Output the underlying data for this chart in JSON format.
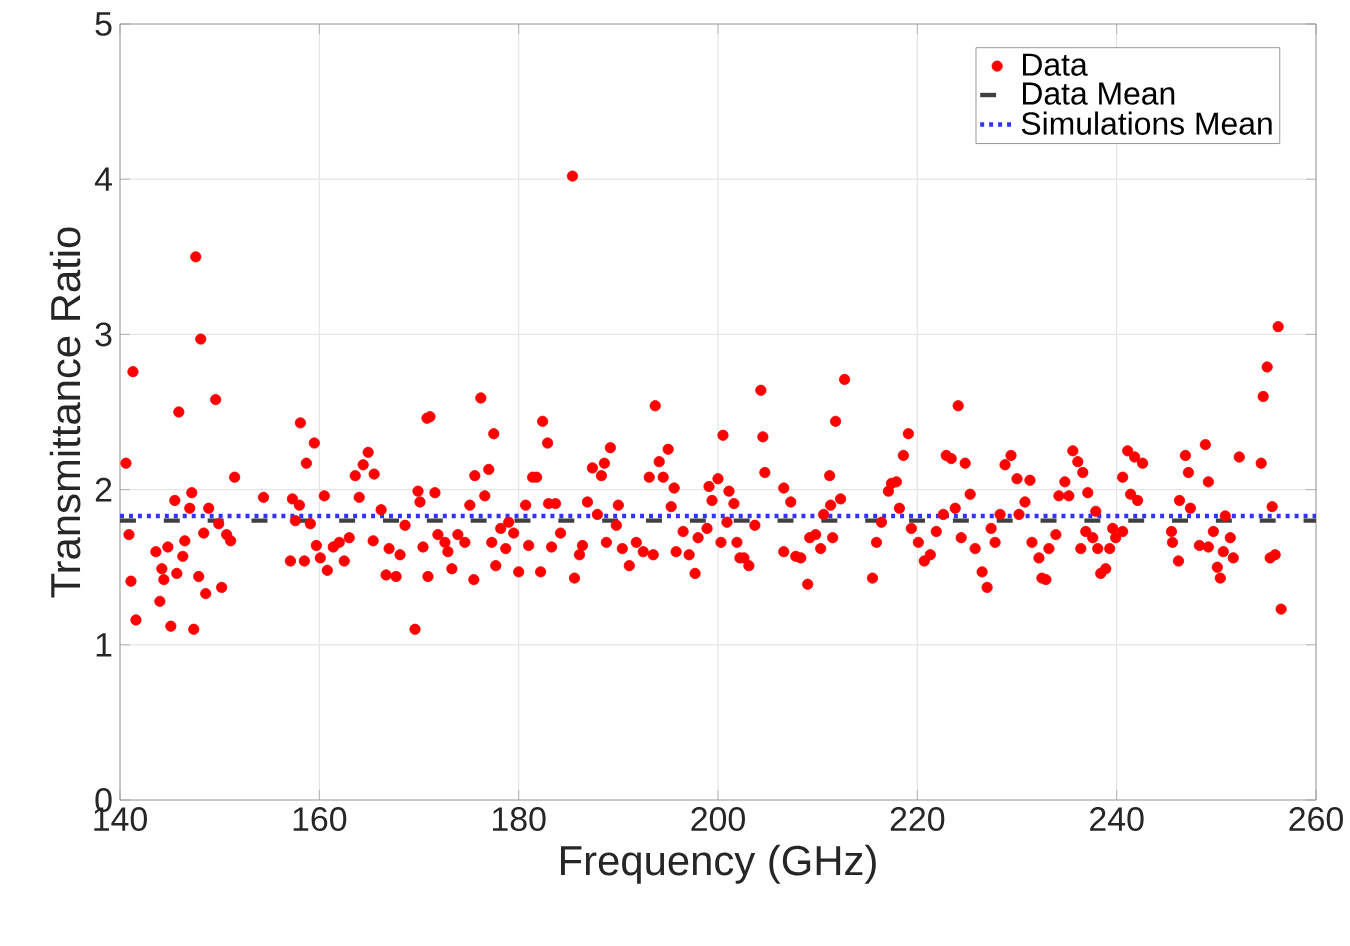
{
  "chart_data": {
    "type": "scatter",
    "xlabel": "Frequency (GHz)",
    "ylabel": "Transmittance Ratio",
    "xlim": [
      140,
      260
    ],
    "ylim": [
      0,
      5
    ],
    "xticks": [
      140,
      160,
      180,
      200,
      220,
      240,
      260
    ],
    "yticks": [
      0,
      1,
      2,
      3,
      4,
      5
    ],
    "grid": true,
    "legend": "top right",
    "series": [
      {
        "name": "Data",
        "type": "scatter",
        "marker": "circle",
        "color": "#ff0000",
        "x": [
          140.6,
          141.3,
          140.9,
          141.1,
          141.6,
          143.6,
          144.0,
          144.2,
          144.4,
          144.8,
          145.1,
          145.5,
          145.7,
          145.9,
          146.3,
          146.5,
          147.2,
          147.0,
          147.6,
          147.4,
          147.9,
          148.1,
          148.4,
          148.6,
          148.9,
          149.6,
          149.9,
          150.2,
          150.7,
          151.1,
          151.5,
          154.4,
          157.3,
          157.6,
          157.1,
          158.1,
          158.7,
          159.5,
          158.5,
          158.0,
          159.1,
          159.7,
          160.1,
          160.5,
          160.8,
          161.4,
          162.0,
          162.5,
          163.0,
          163.6,
          164.0,
          164.4,
          164.9,
          165.5,
          165.4,
          166.2,
          166.7,
          167.0,
          167.7,
          168.1,
          168.6,
          169.6,
          169.9,
          170.1,
          170.4,
          170.8,
          170.9,
          171.1,
          171.6,
          171.9,
          172.6,
          172.9,
          173.3,
          173.9,
          174.6,
          175.1,
          175.5,
          175.6,
          176.2,
          176.6,
          177.0,
          177.3,
          177.5,
          177.7,
          178.2,
          178.7,
          179.0,
          179.5,
          180.0,
          180.7,
          181.0,
          181.4,
          181.8,
          182.2,
          182.4,
          182.9,
          183.0,
          183.3,
          183.7,
          184.2,
          185.4,
          185.6,
          186.1,
          186.4,
          186.9,
          187.4,
          187.9,
          188.3,
          188.6,
          188.8,
          189.2,
          189.8,
          190.0,
          190.4,
          191.1,
          191.8,
          192.5,
          193.1,
          193.5,
          193.7,
          194.1,
          194.5,
          195.0,
          195.3,
          195.6,
          195.8,
          196.5,
          197.1,
          197.7,
          198.0,
          198.9,
          199.1,
          199.4,
          200.0,
          200.3,
          200.5,
          201.1,
          201.6,
          202.2,
          200.9,
          201.9,
          202.6,
          203.1,
          203.7,
          204.3,
          204.5,
          204.7,
          206.6,
          206.6,
          207.3,
          207.8,
          208.3,
          209.0,
          209.2,
          209.8,
          210.3,
          210.6,
          211.2,
          211.3,
          211.5,
          211.8,
          212.3,
          212.7,
          215.5,
          215.9,
          216.4,
          217.1,
          217.4,
          217.9,
          218.2,
          218.6,
          219.1,
          219.4,
          220.1,
          220.7,
          221.3,
          221.9,
          222.6,
          222.9,
          223.4,
          224.1,
          223.8,
          224.4,
          224.8,
          225.3,
          225.8,
          226.5,
          227.0,
          227.4,
          227.8,
          228.3,
          228.8,
          229.4,
          230.0,
          230.2,
          230.8,
          231.3,
          231.5,
          232.2,
          232.5,
          232.9,
          233.2,
          233.9,
          234.2,
          234.8,
          235.2,
          235.6,
          236.1,
          236.4,
          236.6,
          236.9,
          237.1,
          237.6,
          237.9,
          238.1,
          238.4,
          238.9,
          239.3,
          239.6,
          239.9,
          240.6,
          240.6,
          241.1,
          241.4,
          241.8,
          242.1,
          242.6,
          245.5,
          245.6,
          246.2,
          246.3,
          246.9,
          247.2,
          247.4,
          248.3,
          248.9,
          249.2,
          249.2,
          249.7,
          250.1,
          250.4,
          250.7,
          250.9,
          251.4,
          251.7,
          252.3,
          254.5,
          254.7,
          255.1,
          255.6,
          255.4,
          255.9,
          256.2,
          256.5
        ],
        "values": [
          2.17,
          2.76,
          1.71,
          1.41,
          1.16,
          1.6,
          1.28,
          1.49,
          1.42,
          1.63,
          1.12,
          1.93,
          1.46,
          2.5,
          1.57,
          1.67,
          1.98,
          1.88,
          3.5,
          1.1,
          1.44,
          2.97,
          1.72,
          1.33,
          1.88,
          2.58,
          1.78,
          1.37,
          1.71,
          1.67,
          2.08,
          1.95,
          1.94,
          1.8,
          1.54,
          2.43,
          2.17,
          2.3,
          1.54,
          1.9,
          1.78,
          1.64,
          1.56,
          1.96,
          1.48,
          1.63,
          1.66,
          1.54,
          1.69,
          2.09,
          1.95,
          2.16,
          2.24,
          2.1,
          1.67,
          1.87,
          1.45,
          1.62,
          1.44,
          1.58,
          1.77,
          1.1,
          1.99,
          1.92,
          1.63,
          2.46,
          1.44,
          2.47,
          1.98,
          1.71,
          1.66,
          1.6,
          1.49,
          1.71,
          1.66,
          1.9,
          1.42,
          2.09,
          2.59,
          1.96,
          2.13,
          1.66,
          2.36,
          1.51,
          1.75,
          1.62,
          1.79,
          1.72,
          1.47,
          1.9,
          1.64,
          2.08,
          2.08,
          1.47,
          2.44,
          2.3,
          1.91,
          1.63,
          1.91,
          1.72,
          4.02,
          1.43,
          1.58,
          1.64,
          1.92,
          2.14,
          1.84,
          2.09,
          2.17,
          1.66,
          2.27,
          1.77,
          1.9,
          1.62,
          1.51,
          1.66,
          1.6,
          2.08,
          1.58,
          2.54,
          2.18,
          2.08,
          2.26,
          1.89,
          2.01,
          1.6,
          1.73,
          1.58,
          1.46,
          1.69,
          1.75,
          2.02,
          1.93,
          2.07,
          1.66,
          2.35,
          1.99,
          1.91,
          1.56,
          1.79,
          1.66,
          1.56,
          1.51,
          1.77,
          2.64,
          2.34,
          2.11,
          2.01,
          1.6,
          1.92,
          1.57,
          1.56,
          1.39,
          1.69,
          1.71,
          1.62,
          1.84,
          2.09,
          1.9,
          1.69,
          2.44,
          1.94,
          2.71,
          1.43,
          1.66,
          1.79,
          1.99,
          2.04,
          2.05,
          1.88,
          2.22,
          2.36,
          1.75,
          1.66,
          1.54,
          1.58,
          1.73,
          1.84,
          2.22,
          2.2,
          2.54,
          1.88,
          1.69,
          2.17,
          1.97,
          1.62,
          1.47,
          1.37,
          1.75,
          1.66,
          1.84,
          2.16,
          2.22,
          2.07,
          1.84,
          1.92,
          2.06,
          1.66,
          1.56,
          1.43,
          1.42,
          1.62,
          1.71,
          1.96,
          2.05,
          1.96,
          2.25,
          2.18,
          1.62,
          2.11,
          1.73,
          1.98,
          1.69,
          1.86,
          1.62,
          1.46,
          1.49,
          1.62,
          1.75,
          1.69,
          1.73,
          2.08,
          2.25,
          1.97,
          2.21,
          1.93,
          2.17,
          1.73,
          1.66,
          1.54,
          1.93,
          2.22,
          2.11,
          1.88,
          1.64,
          2.29,
          2.05,
          1.63,
          1.73,
          1.5,
          1.43,
          1.6,
          1.83,
          1.69,
          1.56,
          2.21,
          2.17,
          2.6,
          2.79,
          1.89,
          1.56,
          1.58,
          3.05,
          1.23
        ]
      },
      {
        "name": "Data Mean",
        "type": "line",
        "marker": "none",
        "line_style": "dashed",
        "color": "#404040",
        "x": [
          140,
          260
        ],
        "values": [
          1.8,
          1.8
        ]
      },
      {
        "name": "Simulations Mean",
        "type": "line",
        "marker": "none",
        "line_style": "dotted",
        "color": "#3333ff",
        "x": [
          140,
          260
        ],
        "values": [
          1.83,
          1.83
        ]
      }
    ]
  }
}
